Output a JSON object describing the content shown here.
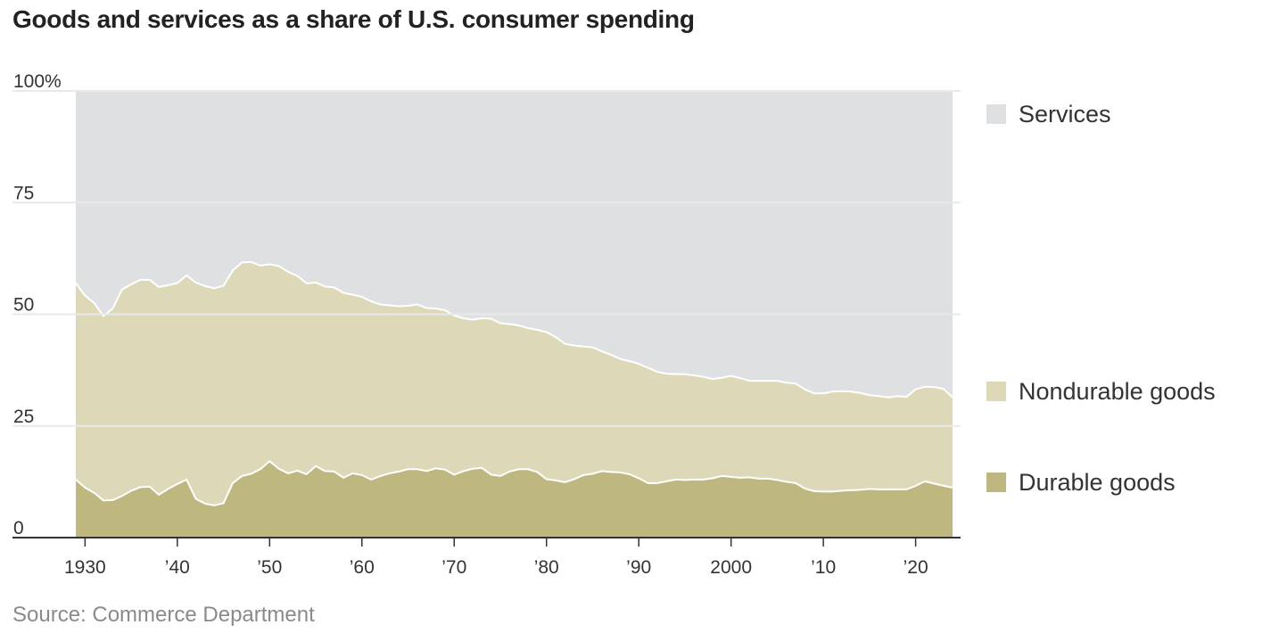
{
  "title": "Goods and services as a share of U.S. consumer spending",
  "source": "Source: Commerce Department",
  "colors": {
    "services": "#dfe0e2",
    "nondurable": "#ddd8b7",
    "durable": "#bfb780",
    "separator": "#ffffff",
    "gridline": "#e9e9e9",
    "axis": "#333333"
  },
  "chart_data": {
    "type": "area",
    "stacked": true,
    "ylim": [
      0,
      100
    ],
    "xlim": [
      1929,
      2024
    ],
    "y_ticks": [
      {
        "value": 0,
        "label": "0"
      },
      {
        "value": 25,
        "label": "25"
      },
      {
        "value": 50,
        "label": "50"
      },
      {
        "value": 75,
        "label": "75"
      },
      {
        "value": 100,
        "label": "100%"
      }
    ],
    "x_ticks": [
      {
        "value": 1930,
        "label": "1930"
      },
      {
        "value": 1940,
        "label": "’40"
      },
      {
        "value": 1950,
        "label": "’50"
      },
      {
        "value": 1960,
        "label": "’60"
      },
      {
        "value": 1970,
        "label": "’70"
      },
      {
        "value": 1980,
        "label": "’80"
      },
      {
        "value": 1990,
        "label": "’90"
      },
      {
        "value": 2000,
        "label": "2000"
      },
      {
        "value": 2010,
        "label": "’10"
      },
      {
        "value": 2020,
        "label": "’20"
      }
    ],
    "legend": [
      "Services",
      "Nondurable goods",
      "Durable goods"
    ],
    "x": [
      1929,
      1930,
      1931,
      1932,
      1933,
      1934,
      1935,
      1936,
      1937,
      1938,
      1939,
      1940,
      1941,
      1942,
      1943,
      1944,
      1945,
      1946,
      1947,
      1948,
      1949,
      1950,
      1951,
      1952,
      1953,
      1954,
      1955,
      1956,
      1957,
      1958,
      1959,
      1960,
      1961,
      1962,
      1963,
      1964,
      1965,
      1966,
      1967,
      1968,
      1969,
      1970,
      1971,
      1972,
      1973,
      1974,
      1975,
      1976,
      1977,
      1978,
      1979,
      1980,
      1981,
      1982,
      1983,
      1984,
      1985,
      1986,
      1987,
      1988,
      1989,
      1990,
      1991,
      1992,
      1993,
      1994,
      1995,
      1996,
      1997,
      1998,
      1999,
      2000,
      2001,
      2002,
      2003,
      2004,
      2005,
      2006,
      2007,
      2008,
      2009,
      2010,
      2011,
      2012,
      2013,
      2014,
      2015,
      2016,
      2017,
      2018,
      2019,
      2020,
      2021,
      2022,
      2023,
      2024
    ],
    "series": [
      {
        "name": "Durable goods",
        "values": [
          13.0,
          11.2,
          10.0,
          8.3,
          8.4,
          9.3,
          10.5,
          11.3,
          11.4,
          9.6,
          10.9,
          12.0,
          13.0,
          8.7,
          7.6,
          7.2,
          7.7,
          12.2,
          13.8,
          14.3,
          15.3,
          17.1,
          15.4,
          14.4,
          15.0,
          14.2,
          16.0,
          14.9,
          14.8,
          13.4,
          14.4,
          14.0,
          13.0,
          13.8,
          14.4,
          14.8,
          15.3,
          15.3,
          14.9,
          15.5,
          15.2,
          14.1,
          14.9,
          15.4,
          15.6,
          14.1,
          13.8,
          14.8,
          15.3,
          15.3,
          14.7,
          13.1,
          12.8,
          12.4,
          13.1,
          14.0,
          14.3,
          14.9,
          14.7,
          14.6,
          14.2,
          13.3,
          12.2,
          12.2,
          12.6,
          13.0,
          12.9,
          13.0,
          13.0,
          13.3,
          13.8,
          13.6,
          13.4,
          13.5,
          13.2,
          13.2,
          12.9,
          12.5,
          12.2,
          11.0,
          10.4,
          10.3,
          10.3,
          10.5,
          10.6,
          10.7,
          10.9,
          10.8,
          10.8,
          10.8,
          10.8,
          11.6,
          12.6,
          12.1,
          11.6,
          11.2
        ]
      },
      {
        "name": "Nondurable goods",
        "values": [
          44.0,
          43.0,
          42.5,
          41.3,
          42.9,
          46.2,
          46.2,
          46.4,
          46.3,
          46.5,
          45.6,
          45.0,
          45.7,
          48.4,
          48.7,
          48.6,
          48.7,
          47.6,
          47.8,
          47.4,
          45.6,
          44.1,
          45.4,
          45.1,
          43.6,
          42.7,
          41.1,
          41.3,
          41.2,
          41.4,
          40.0,
          39.9,
          39.9,
          38.4,
          37.6,
          37.0,
          36.6,
          36.9,
          36.5,
          35.8,
          35.7,
          35.6,
          34.2,
          33.4,
          33.5,
          34.9,
          34.2,
          33.0,
          32.2,
          31.6,
          31.8,
          32.9,
          32.1,
          31.0,
          29.9,
          28.8,
          28.3,
          26.8,
          26.2,
          25.4,
          25.3,
          25.6,
          25.8,
          24.9,
          24.1,
          23.6,
          23.7,
          23.3,
          23.0,
          22.2,
          22.0,
          22.6,
          22.3,
          21.6,
          21.9,
          21.9,
          22.2,
          22.2,
          22.3,
          22.2,
          21.9,
          22.0,
          22.4,
          22.3,
          22.1,
          21.7,
          21.0,
          20.9,
          20.6,
          20.9,
          20.7,
          21.6,
          21.2,
          21.6,
          21.7,
          20.2
        ]
      }
    ]
  }
}
